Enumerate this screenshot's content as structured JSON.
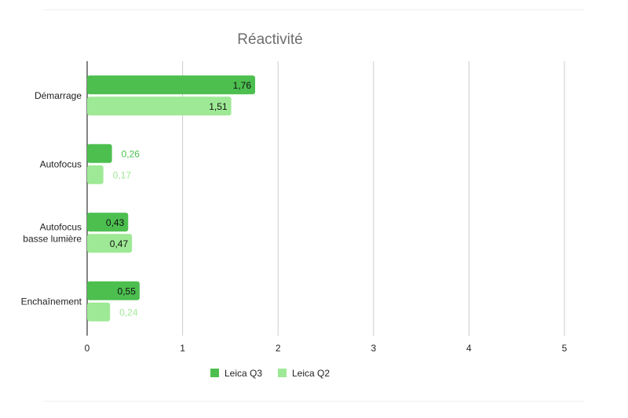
{
  "chart_data": {
    "type": "bar",
    "orientation": "horizontal",
    "title": "Réactivité",
    "xlabel": "",
    "ylabel": "",
    "categories": [
      [
        "Démarrage"
      ],
      [
        "Autofocus"
      ],
      [
        "Autofocus",
        "basse lumière"
      ],
      [
        "Enchaînement"
      ]
    ],
    "series": [
      {
        "name": "Leica Q3",
        "values": [
          1.76,
          0.26,
          0.43,
          0.55
        ],
        "labels": [
          "1,76",
          "0,26",
          "0,43",
          "0,55"
        ],
        "color": "#4cbf4f"
      },
      {
        "name": "Leica Q2",
        "values": [
          1.51,
          0.17,
          0.47,
          0.24
        ],
        "labels": [
          "1,51",
          "0,17",
          "0,47",
          "0,24"
        ],
        "color": "#9ee995"
      }
    ],
    "xlim": [
      0,
      5
    ],
    "xticks": [
      "0",
      "1",
      "2",
      "3",
      "4",
      "5"
    ],
    "grid": true,
    "legend_position": "bottom"
  }
}
